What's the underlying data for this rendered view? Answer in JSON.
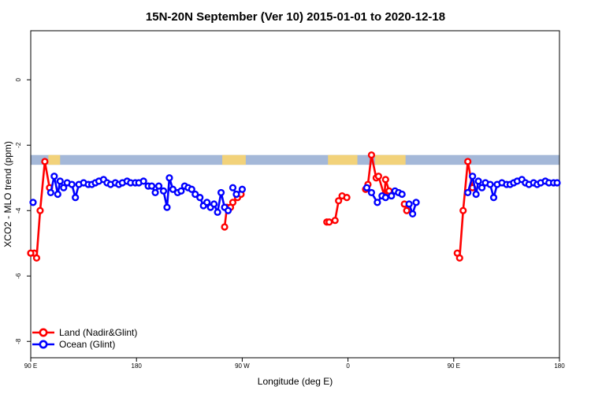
{
  "chart_data": {
    "type": "line",
    "title": "15N-20N September (Ver 10)   2015-01-01 to 2020-12-18",
    "xlabel": "Longitude (deg E)",
    "ylabel": "XCO2 - MLO trend (ppm)",
    "xlim": [
      90,
      540
    ],
    "ylim": [
      -8.5,
      1.5
    ],
    "x_ticks": [
      {
        "value": 90,
        "label": "90 E"
      },
      {
        "value": 180,
        "label": "180"
      },
      {
        "value": 270,
        "label": "90 W"
      },
      {
        "value": 360,
        "label": "0"
      },
      {
        "value": 450,
        "label": "90 E"
      },
      {
        "value": 540,
        "label": "180"
      }
    ],
    "y_ticks": [
      {
        "value": 0,
        "label": "0"
      },
      {
        "value": -2,
        "label": "-2"
      },
      {
        "value": -4,
        "label": "-4"
      },
      {
        "value": -6,
        "label": "-6"
      },
      {
        "value": -8,
        "label": "-8"
      }
    ],
    "grid": false,
    "legend_position": "bottom-left",
    "land_band": {
      "y_range": [
        -2.6,
        -2.3
      ],
      "ocean_color": "#a4b8d8",
      "land_color": "#f2d27a",
      "land_spans": [
        [
          105,
          115
        ],
        [
          253,
          273
        ],
        [
          343,
          368
        ],
        [
          383,
          409
        ]
      ]
    },
    "series": [
      {
        "name": "Land (Nadir&Glint)",
        "color": "#ff0000",
        "segments": [
          [
            [
              93,
              -5.3
            ],
            [
              95,
              -5.45
            ],
            [
              98,
              -4.0
            ],
            [
              102,
              -2.5
            ],
            [
              106,
              -3.3
            ]
          ],
          [
            [
              90,
              -5.3
            ],
            [
              90,
              -5.3
            ]
          ],
          [
            [
              255,
              -4.5
            ],
            [
              257,
              -3.9
            ],
            [
              260,
              -3.9
            ],
            [
              262,
              -3.75
            ]
          ],
          [
            [
              266,
              -3.6
            ],
            [
              269,
              -3.5
            ]
          ],
          [
            [
              342,
              -4.35
            ],
            [
              344,
              -4.35
            ],
            [
              349,
              -4.3
            ],
            [
              352,
              -3.7
            ],
            [
              355,
              -3.55
            ],
            [
              359,
              -3.6
            ]
          ],
          [
            [
              375,
              -3.35
            ],
            [
              377,
              -3.2
            ],
            [
              380,
              -2.3
            ],
            [
              384,
              -3.0
            ],
            [
              386,
              -2.95
            ],
            [
              391,
              -3.55
            ],
            [
              392,
              -3.05
            ],
            [
              395,
              -3.4
            ]
          ],
          [
            [
              408,
              -3.8
            ],
            [
              410,
              -4.0
            ]
          ],
          [
            [
              453,
              -5.3
            ],
            [
              455,
              -5.45
            ],
            [
              458,
              -4.0
            ],
            [
              462,
              -2.5
            ],
            [
              466,
              -3.3
            ]
          ]
        ]
      },
      {
        "name": "Ocean (Glint)",
        "color": "#0000ff",
        "segments": [
          [
            [
              92,
              -3.75
            ]
          ],
          [
            [
              107,
              -3.45
            ],
            [
              110,
              -2.95
            ],
            [
              113,
              -3.5
            ],
            [
              115,
              -3.1
            ],
            [
              118,
              -3.3
            ],
            [
              121,
              -3.15
            ],
            [
              125,
              -3.2
            ],
            [
              128,
              -3.6
            ],
            [
              131,
              -3.2
            ],
            [
              135,
              -3.15
            ],
            [
              139,
              -3.2
            ],
            [
              142,
              -3.2
            ],
            [
              145,
              -3.15
            ],
            [
              148,
              -3.1
            ],
            [
              152,
              -3.05
            ],
            [
              155,
              -3.15
            ],
            [
              158,
              -3.2
            ],
            [
              162,
              -3.15
            ],
            [
              165,
              -3.2
            ],
            [
              168,
              -3.15
            ],
            [
              172,
              -3.1
            ],
            [
              175,
              -3.15
            ],
            [
              179,
              -3.15
            ],
            [
              182,
              -3.15
            ],
            [
              186,
              -3.1
            ],
            [
              190,
              -3.25
            ],
            [
              193,
              -3.25
            ],
            [
              196,
              -3.45
            ],
            [
              199,
              -3.25
            ],
            [
              203,
              -3.4
            ],
            [
              206,
              -3.9
            ],
            [
              208,
              -3.0
            ],
            [
              211,
              -3.35
            ],
            [
              215,
              -3.45
            ],
            [
              218,
              -3.4
            ],
            [
              221,
              -3.25
            ],
            [
              224,
              -3.3
            ],
            [
              227,
              -3.35
            ],
            [
              230,
              -3.5
            ],
            [
              234,
              -3.6
            ],
            [
              237,
              -3.85
            ],
            [
              240,
              -3.75
            ],
            [
              243,
              -3.9
            ],
            [
              246,
              -3.8
            ],
            [
              249,
              -4.05
            ],
            [
              252,
              -3.45
            ],
            [
              255,
              -3.9
            ],
            [
              258,
              -4.0
            ]
          ],
          [
            [
              262,
              -3.3
            ],
            [
              265,
              -3.5
            ],
            [
              270,
              -3.35
            ]
          ],
          [
            [
              376,
              -3.3
            ],
            [
              380,
              -3.45
            ],
            [
              385,
              -3.75
            ],
            [
              389,
              -3.55
            ],
            [
              392,
              -3.6
            ],
            [
              397,
              -3.55
            ]
          ],
          [
            [
              400,
              -3.4
            ],
            [
              403,
              -3.45
            ],
            [
              406,
              -3.5
            ]
          ],
          [
            [
              412,
              -3.8
            ],
            [
              415,
              -4.1
            ],
            [
              418,
              -3.75
            ]
          ],
          [
            [
              462,
              -3.45
            ],
            [
              466,
              -2.95
            ],
            [
              469,
              -3.5
            ],
            [
              471,
              -3.1
            ],
            [
              474,
              -3.3
            ],
            [
              477,
              -3.15
            ],
            [
              481,
              -3.2
            ],
            [
              484,
              -3.6
            ],
            [
              487,
              -3.2
            ],
            [
              491,
              -3.15
            ],
            [
              495,
              -3.2
            ],
            [
              498,
              -3.2
            ],
            [
              501,
              -3.15
            ],
            [
              504,
              -3.1
            ],
            [
              508,
              -3.05
            ],
            [
              511,
              -3.15
            ],
            [
              514,
              -3.2
            ],
            [
              518,
              -3.15
            ],
            [
              521,
              -3.2
            ],
            [
              524,
              -3.15
            ],
            [
              528,
              -3.1
            ],
            [
              531,
              -3.15
            ],
            [
              535,
              -3.15
            ],
            [
              538,
              -3.15
            ]
          ]
        ]
      }
    ]
  }
}
